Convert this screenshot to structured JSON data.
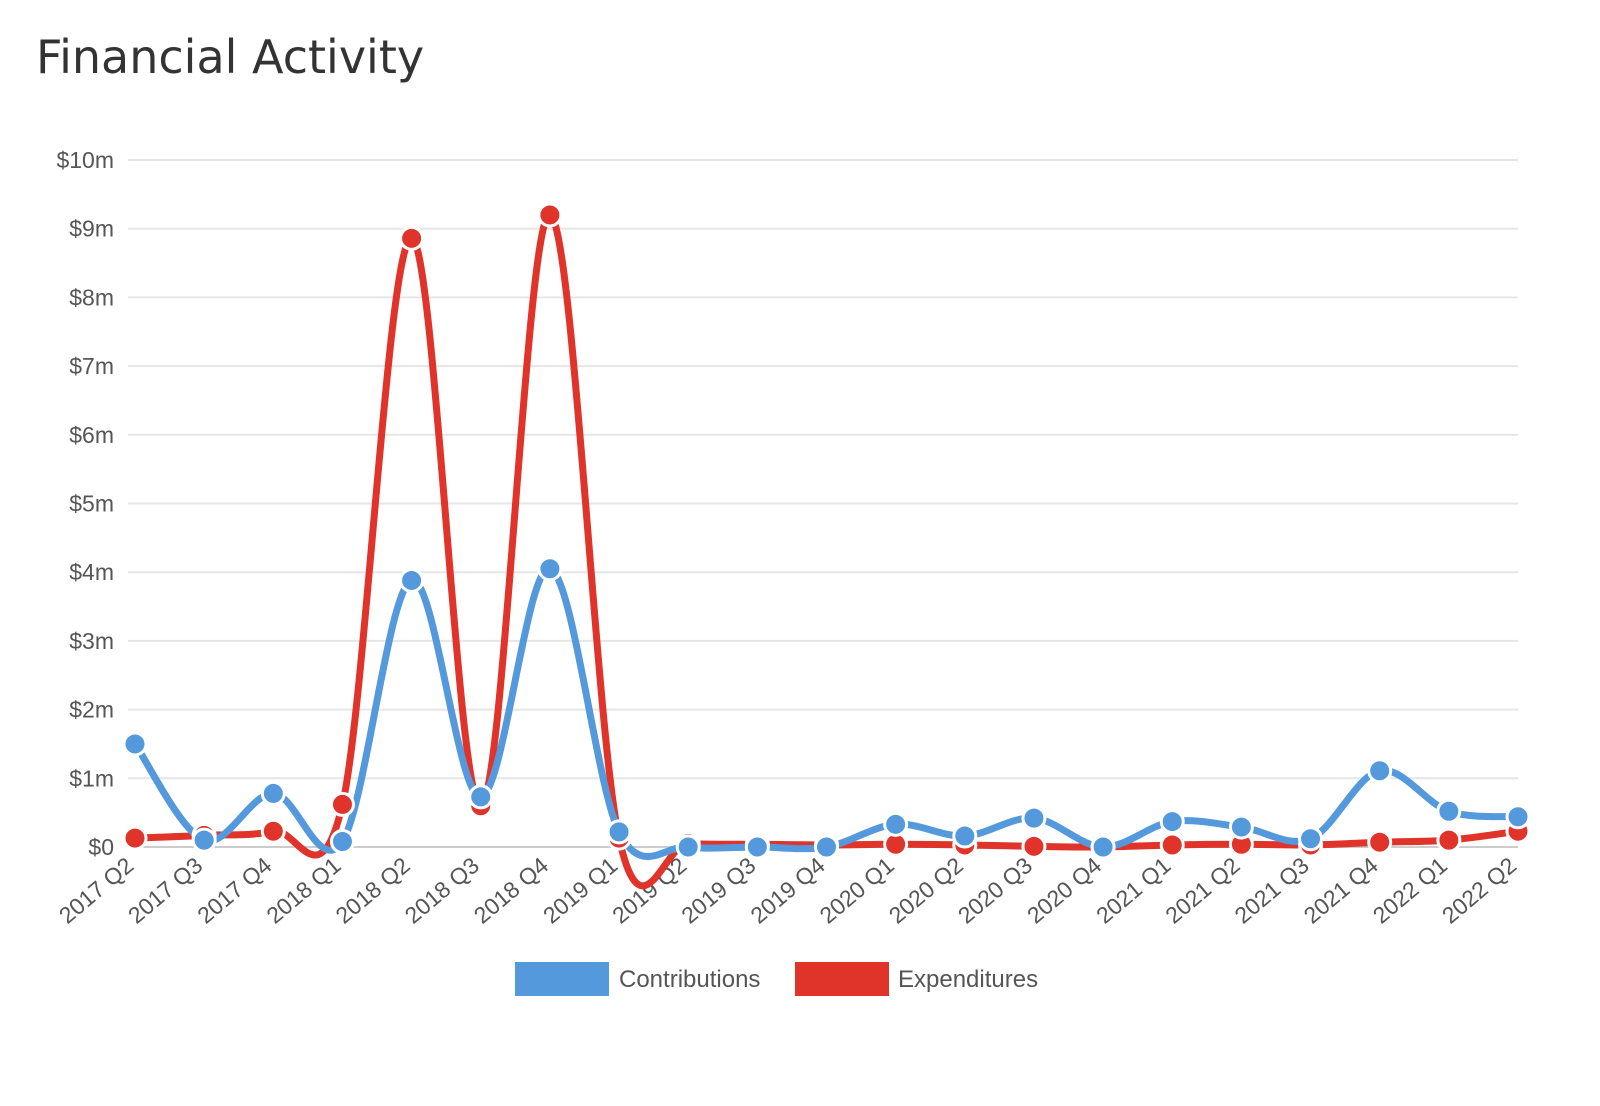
{
  "page": {
    "title": "Financial Activity"
  },
  "chart_data": {
    "type": "line",
    "categories": [
      "2017 Q2",
      "2017 Q3",
      "2017 Q4",
      "2018 Q1",
      "2018 Q2",
      "2018 Q3",
      "2018 Q4",
      "2019 Q1",
      "2019 Q2",
      "2019 Q3",
      "2019 Q4",
      "2020 Q1",
      "2020 Q2",
      "2020 Q3",
      "2020 Q4",
      "2021 Q1",
      "2021 Q2",
      "2021 Q3",
      "2021 Q4",
      "2022 Q1",
      "2022 Q2"
    ],
    "y_ticks": [
      "$0",
      "$1m",
      "$2m",
      "$3m",
      "$4m",
      "$5m",
      "$6m",
      "$7m",
      "$8m",
      "$9m",
      "$10m"
    ],
    "ylim": [
      0,
      10000000
    ],
    "grid": true,
    "smooth": true,
    "legend_position": "bottom-center",
    "series": [
      {
        "name": "Contributions",
        "color": "#5599dd",
        "values": [
          1500000,
          100000,
          780000,
          80000,
          3880000,
          730000,
          4050000,
          220000,
          0,
          0,
          0,
          330000,
          160000,
          420000,
          0,
          370000,
          290000,
          120000,
          1110000,
          520000,
          440000
        ]
      },
      {
        "name": "Expenditures",
        "color": "#e0332a",
        "values": [
          130000,
          170000,
          230000,
          620000,
          8860000,
          600000,
          9200000,
          130000,
          50000,
          40000,
          30000,
          40000,
          30000,
          10000,
          0,
          30000,
          40000,
          30000,
          70000,
          100000,
          230000
        ]
      }
    ]
  }
}
